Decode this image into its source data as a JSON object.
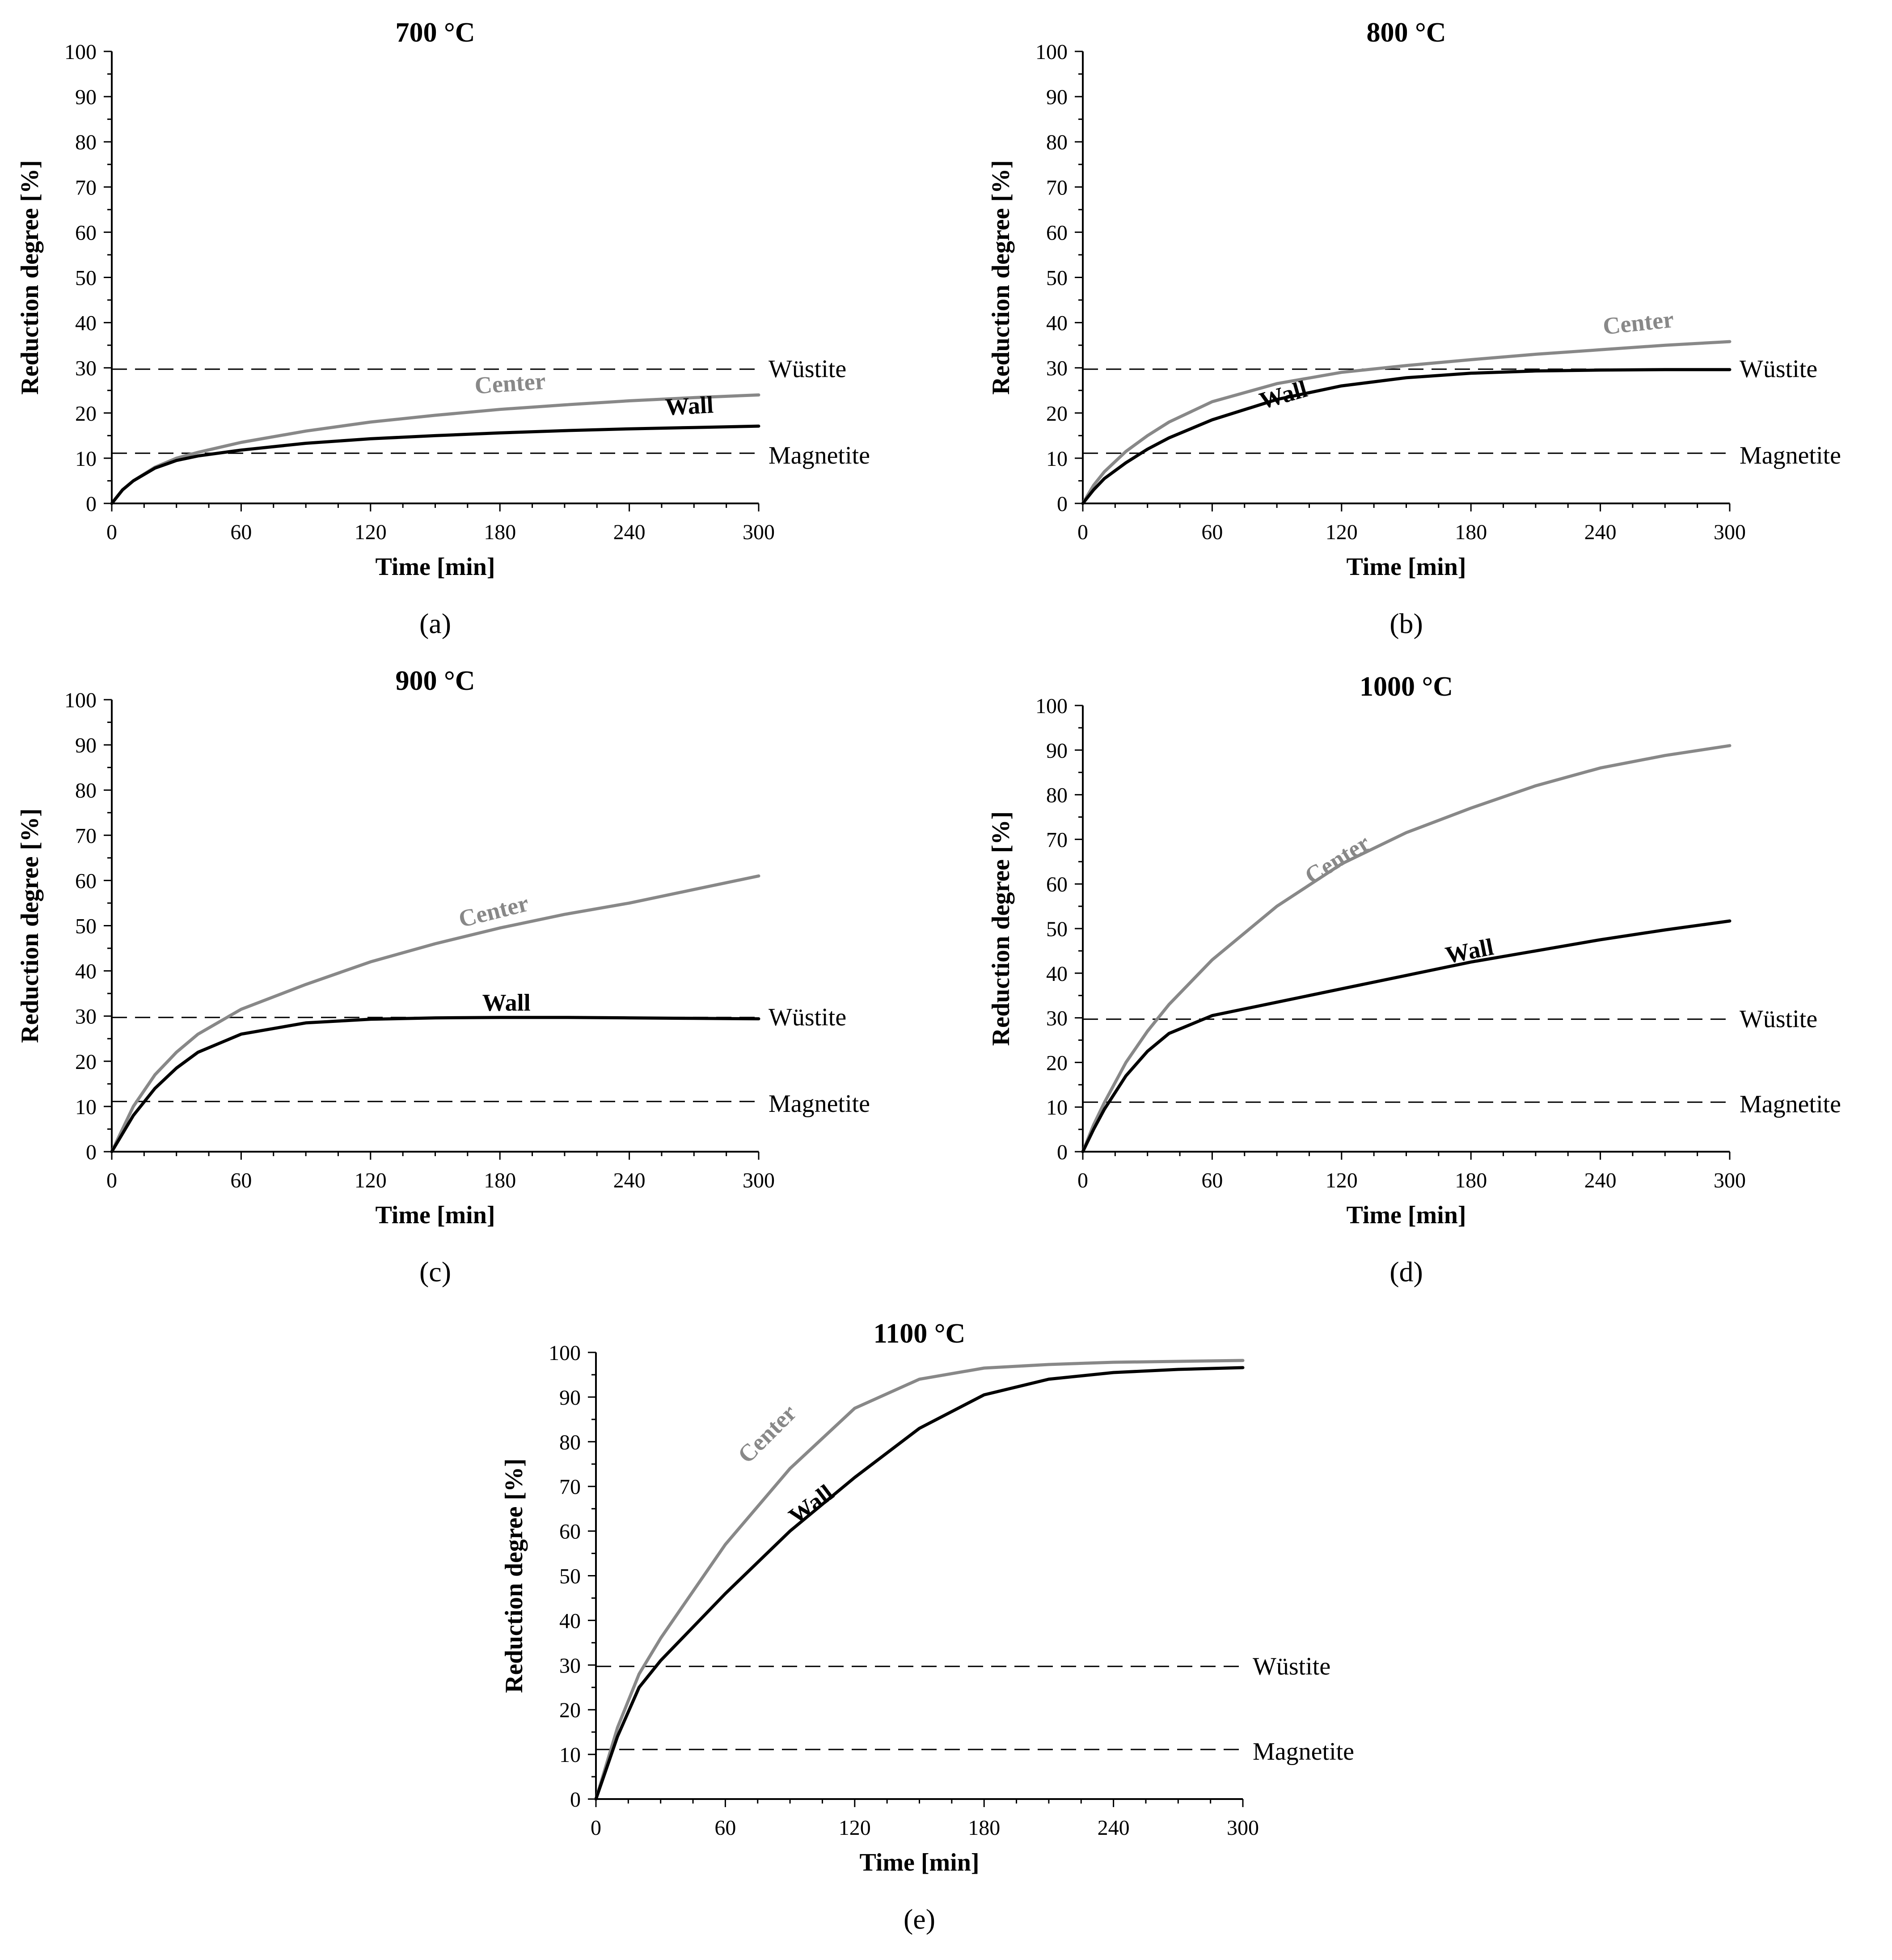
{
  "colors": {
    "center": "#888888",
    "wall": "#000000",
    "axis": "#000000",
    "refline": "#000000"
  },
  "reference_lines": [
    {
      "name": "Wüstite",
      "y": 29.7
    },
    {
      "name": "Magnetite",
      "y": 11.1
    }
  ],
  "chart_data": [
    {
      "panel": "a",
      "type": "line",
      "title": "700 °C",
      "caption": "(a)",
      "xlabel": "Time [min]",
      "ylabel": "Reduction degree [%]",
      "xlim": [
        0,
        300
      ],
      "ylim": [
        0,
        100
      ],
      "xticks": [
        0,
        60,
        120,
        180,
        240,
        300
      ],
      "yticks": [
        0,
        10,
        20,
        30,
        40,
        50,
        60,
        70,
        80,
        90,
        100
      ],
      "x": [
        0,
        5,
        10,
        20,
        30,
        40,
        60,
        90,
        120,
        150,
        180,
        210,
        240,
        270,
        300
      ],
      "series": [
        {
          "name": "Center",
          "values": [
            0,
            3,
            5,
            8,
            10,
            11.3,
            13.5,
            16,
            18,
            19.5,
            20.8,
            21.8,
            22.7,
            23.4,
            24
          ]
        },
        {
          "name": "Wall",
          "values": [
            0,
            3,
            5,
            7.8,
            9.5,
            10.5,
            11.8,
            13.3,
            14.3,
            15,
            15.6,
            16.1,
            16.5,
            16.8,
            17.1
          ]
        }
      ]
    },
    {
      "panel": "b",
      "type": "line",
      "title": "800 °C",
      "caption": "(b)",
      "xlabel": "Time [min]",
      "ylabel": "Reduction degree [%]",
      "xlim": [
        0,
        300
      ],
      "ylim": [
        0,
        100
      ],
      "xticks": [
        0,
        60,
        120,
        180,
        240,
        300
      ],
      "yticks": [
        0,
        10,
        20,
        30,
        40,
        50,
        60,
        70,
        80,
        90,
        100
      ],
      "x": [
        0,
        5,
        10,
        20,
        30,
        40,
        60,
        90,
        120,
        150,
        180,
        210,
        240,
        270,
        300
      ],
      "series": [
        {
          "name": "Center",
          "values": [
            0,
            4,
            7,
            11.5,
            15,
            18,
            22.5,
            26.5,
            29,
            30.5,
            31.8,
            33,
            34,
            35,
            35.8
          ]
        },
        {
          "name": "Wall",
          "values": [
            0,
            3,
            5.5,
            9,
            12,
            14.5,
            18.5,
            23,
            26,
            27.8,
            28.8,
            29.3,
            29.5,
            29.6,
            29.6
          ]
        }
      ]
    },
    {
      "panel": "c",
      "type": "line",
      "title": "900 °C",
      "caption": "(c)",
      "xlabel": "Time [min]",
      "ylabel": "Reduction degree [%]",
      "xlim": [
        0,
        300
      ],
      "ylim": [
        0,
        100
      ],
      "xticks": [
        0,
        60,
        120,
        180,
        240,
        300
      ],
      "yticks": [
        0,
        10,
        20,
        30,
        40,
        50,
        60,
        70,
        80,
        90,
        100
      ],
      "x": [
        0,
        5,
        10,
        20,
        30,
        40,
        60,
        90,
        120,
        150,
        180,
        210,
        240,
        270,
        300
      ],
      "series": [
        {
          "name": "Center",
          "values": [
            0,
            5,
            10,
            17,
            22,
            26,
            31.5,
            37,
            42,
            46,
            49.5,
            52.5,
            55,
            58,
            61
          ]
        },
        {
          "name": "Wall",
          "values": [
            0,
            4,
            8,
            14,
            18.5,
            22,
            26,
            28.5,
            29.3,
            29.6,
            29.7,
            29.7,
            29.6,
            29.5,
            29.4
          ]
        }
      ]
    },
    {
      "panel": "d",
      "type": "line",
      "title": "1000 °C",
      "caption": "(d)",
      "xlabel": "Time [min]",
      "ylabel": "Reduction degree [%]",
      "xlim": [
        0,
        300
      ],
      "ylim": [
        0,
        100
      ],
      "xticks": [
        0,
        60,
        120,
        180,
        240,
        300
      ],
      "yticks": [
        0,
        10,
        20,
        30,
        40,
        50,
        60,
        70,
        80,
        90,
        100
      ],
      "x": [
        0,
        5,
        10,
        20,
        30,
        40,
        60,
        90,
        120,
        150,
        180,
        210,
        240,
        270,
        300
      ],
      "series": [
        {
          "name": "Center",
          "values": [
            0,
            6,
            11,
            20,
            27,
            33,
            43,
            55,
            64.5,
            71.5,
            77,
            82,
            86,
            88.8,
            91
          ]
        },
        {
          "name": "Wall",
          "values": [
            0,
            5,
            9.5,
            17,
            22.5,
            26.5,
            30.5,
            33.5,
            36.5,
            39.5,
            42.5,
            45,
            47.5,
            49.7,
            51.7
          ]
        }
      ]
    },
    {
      "panel": "e",
      "type": "line",
      "title": "1100 °C",
      "caption": "(e)",
      "xlabel": "Time [min]",
      "ylabel": "Reduction degree [%]",
      "xlim": [
        0,
        300
      ],
      "ylim": [
        0,
        100
      ],
      "xticks": [
        0,
        60,
        120,
        180,
        240,
        300
      ],
      "yticks": [
        0,
        10,
        20,
        30,
        40,
        50,
        60,
        70,
        80,
        90,
        100
      ],
      "x": [
        0,
        5,
        10,
        20,
        30,
        40,
        60,
        90,
        120,
        150,
        180,
        210,
        240,
        270,
        300
      ],
      "series": [
        {
          "name": "Center",
          "values": [
            0,
            8,
            16,
            28,
            36,
            43,
            57,
            74,
            87.5,
            94,
            96.5,
            97.3,
            97.8,
            98,
            98.2
          ]
        },
        {
          "name": "Wall",
          "values": [
            0,
            7,
            14,
            25,
            31,
            36,
            46,
            60,
            72,
            83,
            90.5,
            94,
            95.5,
            96.2,
            96.6
          ]
        }
      ]
    }
  ]
}
